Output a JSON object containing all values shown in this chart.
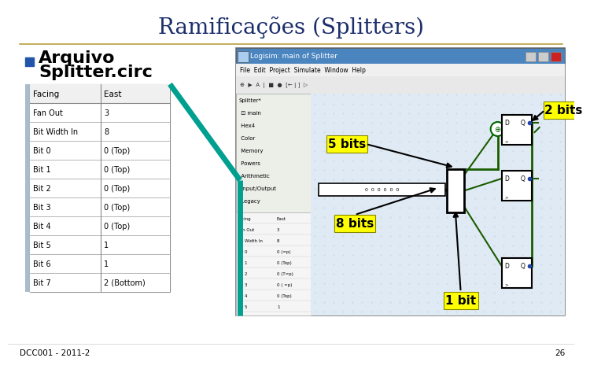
{
  "title": "Ramificações (Splitters)",
  "title_color": "#1C2E6B",
  "title_fontsize": 20,
  "bg_color": "#FFFFFF",
  "bullet_color": "#2255AA",
  "bullet_text_line1": "Arquivo",
  "bullet_text_line2": "Splitter.circ",
  "bullet_fontsize": 16,
  "table_headers": [
    "Facing",
    "East"
  ],
  "table_rows": [
    [
      "Fan Out",
      "3"
    ],
    [
      "Bit Width In",
      "8"
    ],
    [
      "Bit 0",
      "0 (Top)"
    ],
    [
      "Bit 1",
      "0 (Top)"
    ],
    [
      "Bit 2",
      "0 (Top)"
    ],
    [
      "Bit 3",
      "0 (Top)"
    ],
    [
      "Bit 4",
      "0 (Top)"
    ],
    [
      "Bit 5",
      "1"
    ],
    [
      "Bit 6",
      "1"
    ],
    [
      "Bit 7",
      "2 (Bottom)"
    ]
  ],
  "separator_color": "#B8A040",
  "footer_text": "DCC001 - 2011-2",
  "footer_page": "26",
  "annotation_5bits": "5 bits",
  "annotation_2bits": "2 bits",
  "annotation_8bits": "8 bits",
  "annotation_1bit": "1 bit",
  "annotation_bg": "#FFFF00",
  "annotation_fontsize": 11,
  "arrow_color": "#CCCC00",
  "teal_line_color": "#00A090",
  "win_titlebar_color": "#4A85C0",
  "win_bg": "#C8DCE8",
  "win_inner_bg": "#E8EEF5",
  "win_left_bg": "#DDEEDD",
  "table_left_bg": "#DDEEFF",
  "dark_green": "#1A5C00",
  "circuit_bg": "#E0EAF4"
}
